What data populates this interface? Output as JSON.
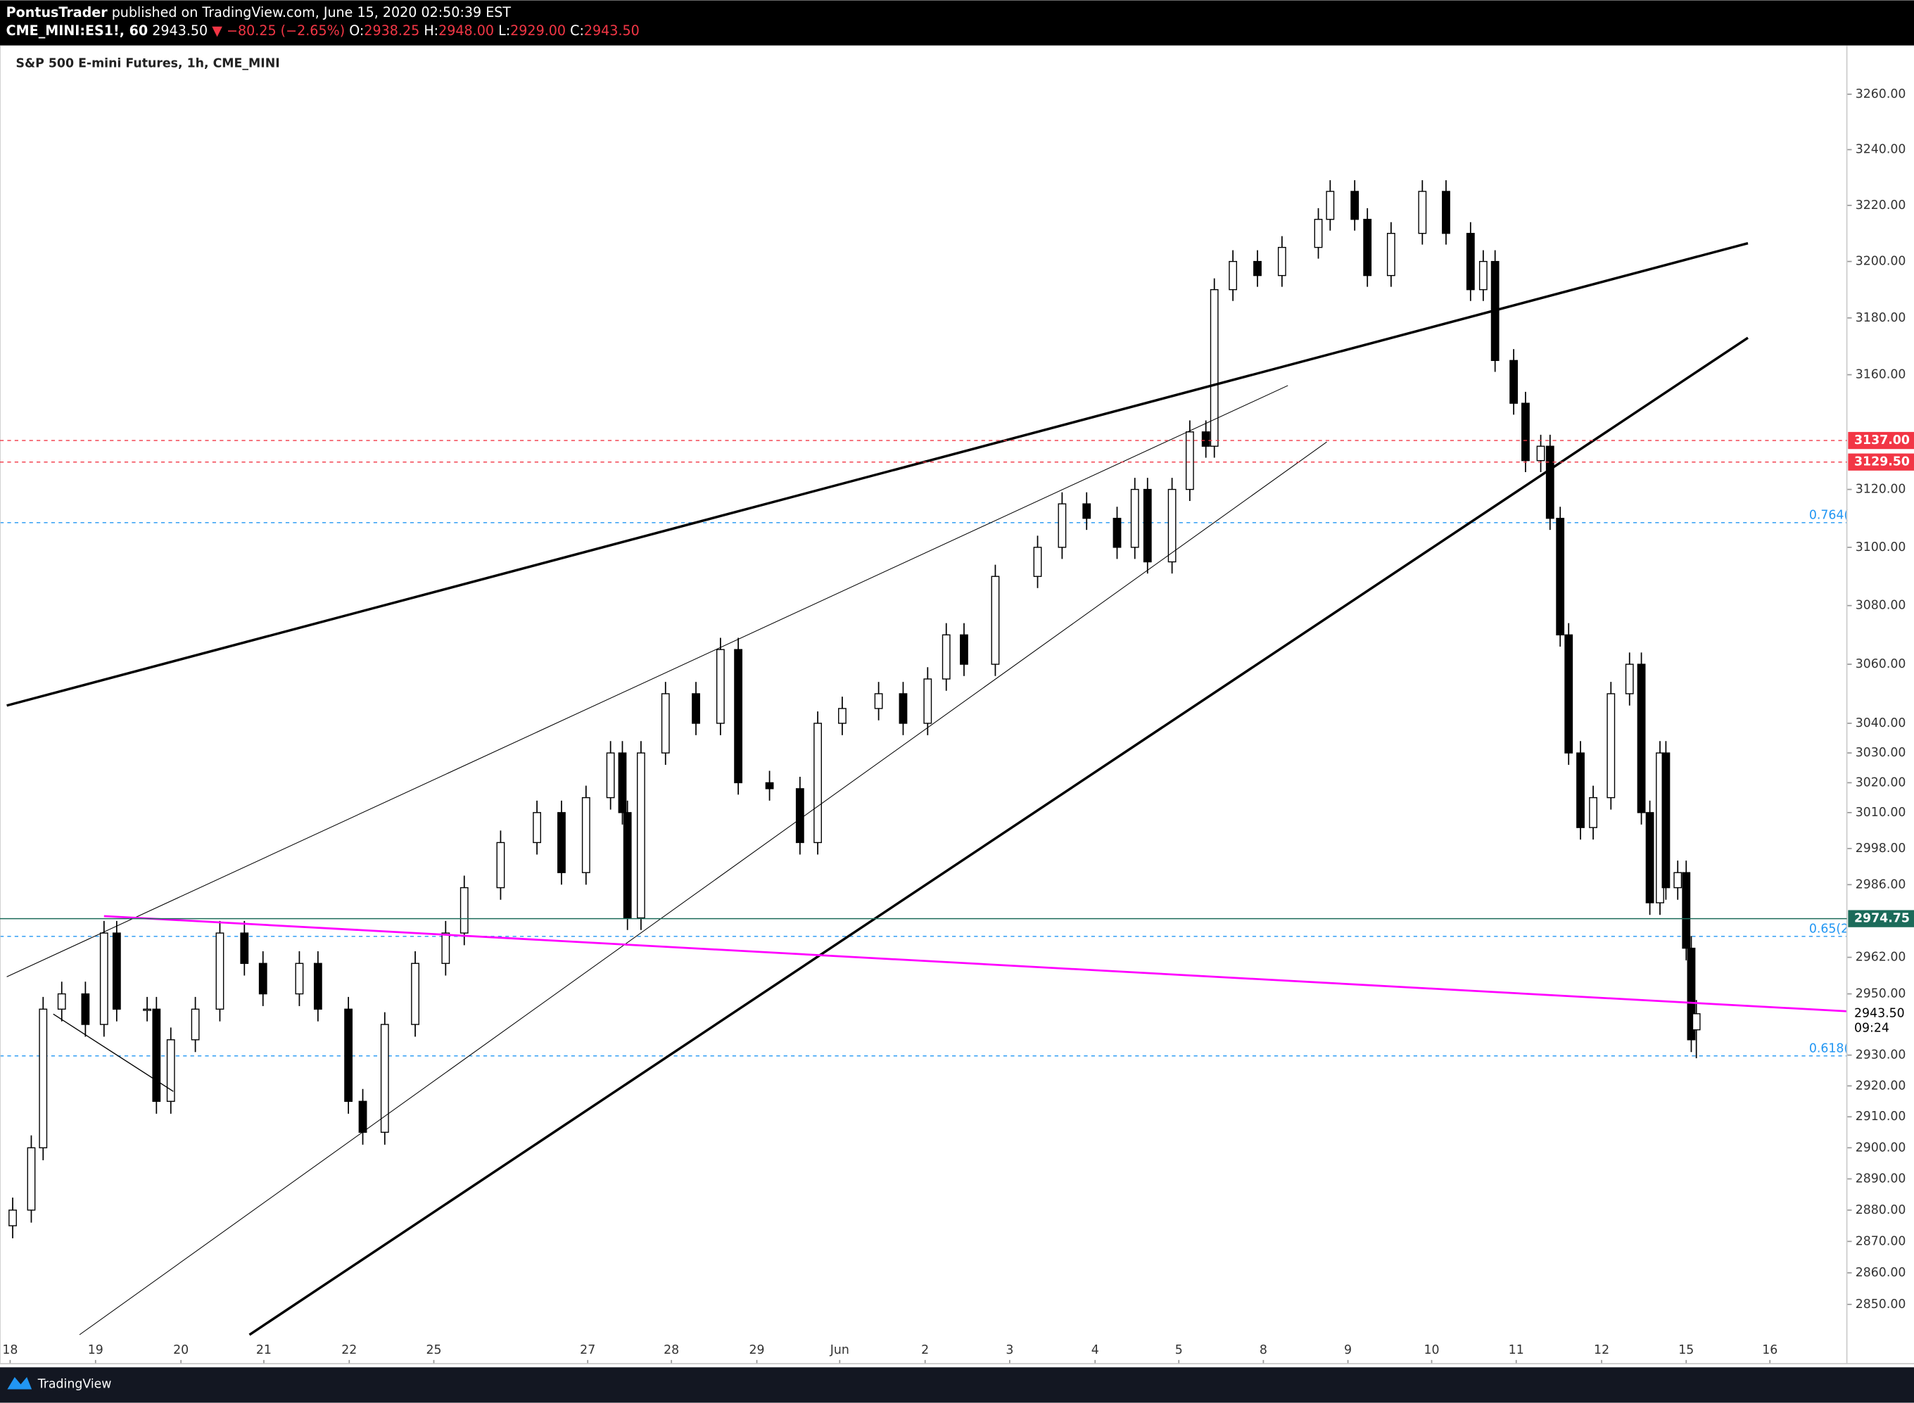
{
  "header": {
    "author": "PontusTrader",
    "published": "published on TradingView.com, June 15, 2020 02:50:39 EST",
    "symbol": "CME_MINI:ES1!, 60",
    "last": "2943.50",
    "change": "▼ −80.25 (−2.65%)",
    "o_label": "O:",
    "open": "2938.25",
    "h_label": "H:",
    "high": "2948.00",
    "l_label": "L:",
    "low": "2929.00",
    "c_label": "C:",
    "close": "2943.50"
  },
  "footer": {
    "brand": "TradingView"
  },
  "chart_data": {
    "type": "candlestick",
    "title": "S&P 500 E-mini Futures, 1h, CME_MINI",
    "log": true,
    "up_color": "#ffffff",
    "down_color": "#000000",
    "wick_color": "#000000",
    "xlim": [
      -0.12,
      21.72
    ],
    "ylim": [
      2831.3,
      3277.7
    ],
    "xticks": [
      {
        "value": 0,
        "label": "18"
      },
      {
        "value": 1.01,
        "label": "19"
      },
      {
        "value": 2.02,
        "label": "20"
      },
      {
        "value": 3.0,
        "label": "21"
      },
      {
        "value": 4.01,
        "label": "22"
      },
      {
        "value": 5.01,
        "label": "25"
      },
      {
        "value": 6.83,
        "label": "27"
      },
      {
        "value": 7.82,
        "label": "28"
      },
      {
        "value": 8.83,
        "label": "29"
      },
      {
        "value": 9.81,
        "label": "Jun"
      },
      {
        "value": 10.82,
        "label": "2"
      },
      {
        "value": 11.82,
        "label": "3"
      },
      {
        "value": 12.83,
        "label": "4"
      },
      {
        "value": 13.82,
        "label": "5"
      },
      {
        "value": 14.82,
        "label": "8"
      },
      {
        "value": 15.82,
        "label": "9"
      },
      {
        "value": 16.81,
        "label": "10"
      },
      {
        "value": 17.81,
        "label": "11"
      },
      {
        "value": 18.82,
        "label": "12"
      },
      {
        "value": 19.82,
        "label": "15"
      },
      {
        "value": 20.81,
        "label": "16"
      }
    ],
    "yticks": [
      {
        "value": 3260,
        "label": "3260.00"
      },
      {
        "value": 3240,
        "label": "3240.00"
      },
      {
        "value": 3220,
        "label": "3220.00"
      },
      {
        "value": 3200,
        "label": "3200.00"
      },
      {
        "value": 3180,
        "label": "3180.00"
      },
      {
        "value": 3160,
        "label": "3160.00"
      },
      {
        "value": 3120,
        "label": "3120.00"
      },
      {
        "value": 3100,
        "label": "3100.00"
      },
      {
        "value": 3080,
        "label": "3080.00"
      },
      {
        "value": 3060,
        "label": "3060.00"
      },
      {
        "value": 3040,
        "label": "3040.00"
      },
      {
        "value": 3030,
        "label": "3030.00"
      },
      {
        "value": 3020,
        "label": "3020.00"
      },
      {
        "value": 3010,
        "label": "3010.00"
      },
      {
        "value": 2998,
        "label": "2998.00"
      },
      {
        "value": 2986,
        "label": "2986.00"
      },
      {
        "value": 2962,
        "label": "2962.00"
      },
      {
        "value": 2950,
        "label": "2950.00"
      },
      {
        "value": 2930,
        "label": "2930.00"
      },
      {
        "value": 2920,
        "label": "2920.00"
      },
      {
        "value": 2910,
        "label": "2910.00"
      },
      {
        "value": 2900,
        "label": "2900.00"
      },
      {
        "value": 2890,
        "label": "2890.00"
      },
      {
        "value": 2880,
        "label": "2880.00"
      },
      {
        "value": 2870,
        "label": "2870.00"
      },
      {
        "value": 2860,
        "label": "2860.00"
      },
      {
        "value": 2850,
        "label": "2850.00"
      }
    ],
    "x": [
      0.03,
      0.25,
      0.39,
      0.61,
      0.89,
      1.11,
      1.26,
      1.62,
      1.73,
      1.9,
      2.19,
      2.48,
      2.77,
      2.99,
      3.42,
      3.64,
      4.0,
      4.17,
      4.43,
      4.79,
      5.15,
      5.37,
      5.8,
      6.23,
      6.52,
      6.81,
      7.1,
      7.24,
      7.3,
      7.46,
      7.75,
      8.11,
      8.4,
      8.61,
      8.98,
      9.34,
      9.55,
      9.84,
      10.27,
      10.56,
      10.85,
      11.07,
      11.28,
      11.65,
      12.15,
      12.44,
      12.73,
      13.09,
      13.3,
      13.45,
      13.74,
      13.95,
      14.14,
      14.24,
      14.46,
      14.75,
      15.04,
      15.47,
      15.61,
      15.9,
      16.05,
      16.33,
      16.7,
      16.98,
      17.27,
      17.42,
      17.56,
      17.78,
      17.92,
      18.1,
      18.21,
      18.33,
      18.43,
      18.57,
      18.72,
      18.93,
      19.15,
      19.29,
      19.39,
      19.51,
      19.58,
      19.72,
      19.82,
      19.88,
      19.94
    ],
    "ohlc": [
      [
        2875,
        2884,
        2871,
        2880
      ],
      [
        2880,
        2904,
        2876,
        2900
      ],
      [
        2900,
        2949,
        2896,
        2945
      ],
      [
        2945,
        2954,
        2941,
        2950
      ],
      [
        2950,
        2954,
        2936,
        2940
      ],
      [
        2940,
        2974,
        2936,
        2970
      ],
      [
        2970,
        2974,
        2941,
        2945
      ],
      [
        2945,
        2949,
        2941,
        2945
      ],
      [
        2945,
        2949,
        2911,
        2915
      ],
      [
        2915,
        2939,
        2911,
        2935
      ],
      [
        2935,
        2949,
        2931,
        2945
      ],
      [
        2945,
        2974,
        2941,
        2970
      ],
      [
        2970,
        2974,
        2956,
        2960
      ],
      [
        2960,
        2964,
        2946,
        2950
      ],
      [
        2950,
        2964,
        2946,
        2960
      ],
      [
        2960,
        2964,
        2941,
        2945
      ],
      [
        2945,
        2949,
        2911,
        2915
      ],
      [
        2915,
        2919,
        2901,
        2905
      ],
      [
        2905,
        2944,
        2901,
        2940
      ],
      [
        2940,
        2964,
        2936,
        2960
      ],
      [
        2960,
        2974,
        2956,
        2970
      ],
      [
        2970,
        2989,
        2966,
        2985
      ],
      [
        2985,
        3004,
        2981,
        3000
      ],
      [
        3000,
        3014,
        2996,
        3010
      ],
      [
        3010,
        3014,
        2986,
        2990
      ],
      [
        2990,
        3019,
        2986,
        3015
      ],
      [
        3015,
        3034,
        3011,
        3030
      ],
      [
        3030,
        3034,
        3006,
        3010
      ],
      [
        3010,
        3014,
        2971,
        2975
      ],
      [
        2975,
        3034,
        2971,
        3030
      ],
      [
        3030,
        3054,
        3026,
        3050
      ],
      [
        3050,
        3054,
        3036,
        3040
      ],
      [
        3040,
        3069,
        3036,
        3065
      ],
      [
        3065,
        3069,
        3016,
        3020
      ],
      [
        3020,
        3024,
        3014,
        3018
      ],
      [
        3018,
        3022,
        2996,
        3000
      ],
      [
        3000,
        3044,
        2996,
        3040
      ],
      [
        3040,
        3049,
        3036,
        3045
      ],
      [
        3045,
        3054,
        3041,
        3050
      ],
      [
        3050,
        3054,
        3036,
        3040
      ],
      [
        3040,
        3059,
        3036,
        3055
      ],
      [
        3055,
        3074,
        3051,
        3070
      ],
      [
        3070,
        3074,
        3056,
        3060
      ],
      [
        3060,
        3094,
        3056,
        3090
      ],
      [
        3090,
        3104,
        3086,
        3100
      ],
      [
        3100,
        3119,
        3096,
        3115
      ],
      [
        3115,
        3119,
        3106,
        3110
      ],
      [
        3110,
        3114,
        3096,
        3100
      ],
      [
        3100,
        3124,
        3096,
        3120
      ],
      [
        3120,
        3124,
        3091,
        3095
      ],
      [
        3095,
        3124,
        3091,
        3120
      ],
      [
        3120,
        3144,
        3116,
        3140
      ],
      [
        3140,
        3144,
        3131,
        3135
      ],
      [
        3135,
        3194,
        3131,
        3190
      ],
      [
        3190,
        3204,
        3186,
        3200
      ],
      [
        3200,
        3204,
        3191,
        3195
      ],
      [
        3195,
        3209,
        3191,
        3205
      ],
      [
        3205,
        3219,
        3201,
        3215
      ],
      [
        3215,
        3229,
        3211,
        3225
      ],
      [
        3225,
        3229,
        3211,
        3215
      ],
      [
        3215,
        3219,
        3191,
        3195
      ],
      [
        3195,
        3214,
        3191,
        3210
      ],
      [
        3210,
        3229,
        3206,
        3225
      ],
      [
        3225,
        3229,
        3206,
        3210
      ],
      [
        3210,
        3214,
        3186,
        3190
      ],
      [
        3190,
        3204,
        3186,
        3200
      ],
      [
        3200,
        3204,
        3161,
        3165
      ],
      [
        3165,
        3169,
        3146,
        3150
      ],
      [
        3150,
        3154,
        3126,
        3130
      ],
      [
        3130,
        3139,
        3126,
        3135
      ],
      [
        3135,
        3139,
        3106,
        3110
      ],
      [
        3110,
        3114,
        3066,
        3070
      ],
      [
        3070,
        3074,
        3026,
        3030
      ],
      [
        3030,
        3034,
        3001,
        3005
      ],
      [
        3005,
        3019,
        3001,
        3015
      ],
      [
        3015,
        3054,
        3011,
        3050
      ],
      [
        3050,
        3064,
        3046,
        3060
      ],
      [
        3060,
        3064,
        3006,
        3010
      ],
      [
        3010,
        3014,
        2976,
        2980
      ],
      [
        2980,
        3034,
        2976,
        3030
      ],
      [
        3030,
        3034,
        2981,
        2985
      ],
      [
        2985,
        2994,
        2981,
        2990
      ],
      [
        2990,
        2994,
        2961,
        2965
      ],
      [
        2965,
        2969,
        2931,
        2935
      ],
      [
        2938.25,
        2948,
        2929,
        2943.5
      ]
    ],
    "drawings": [
      {
        "x": [
          -0.04,
          20.55
        ],
        "y": [
          3046,
          3206.5
        ],
        "color": "#000000",
        "width": 2
      },
      {
        "x": [
          2.83,
          20.55
        ],
        "y": [
          2840.4,
          3173
        ],
        "color": "#000000",
        "width": 2
      },
      {
        "x": [
          -0.04,
          15.11
        ],
        "y": [
          2955.6,
          3156.2
        ],
        "color": "#000000",
        "width": 0.6
      },
      {
        "x": [
          0.82,
          15.57
        ],
        "y": [
          2840.4,
          3136.5
        ],
        "color": "#000000",
        "width": 0.6
      },
      {
        "x": [
          0.51,
          1.93
        ],
        "y": [
          2943.4,
          2918.2
        ],
        "color": "#000000",
        "width": 0.8
      },
      {
        "x": [
          1.11,
          21.72
        ],
        "y": [
          2975.6,
          2944.3
        ],
        "color": "#ff00ff",
        "width": 1.6
      }
    ],
    "price_levels": [
      {
        "value": 3137,
        "label": "3137.00",
        "color": "#f23645",
        "style": "dotted"
      },
      {
        "value": 3129.5,
        "label": "3129.50",
        "color": "#f23645",
        "style": "dotted"
      },
      {
        "value": 2974.75,
        "label": "2974.75",
        "color": "#1b6b5a",
        "style": "solid"
      }
    ],
    "fib_levels": [
      {
        "value": 3108.5,
        "label": "0.764(",
        "color": "#2196f3"
      },
      {
        "value": 2968.9,
        "label": "0.65(2",
        "color": "#2196f3"
      },
      {
        "value": 2929.75,
        "label": "0.618(",
        "color": "#2196f3"
      }
    ],
    "last_price": {
      "value": 2943.5,
      "label": "2943.50",
      "countdown": "09:24"
    }
  }
}
